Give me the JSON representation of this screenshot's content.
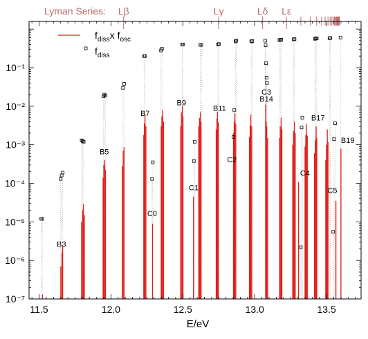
{
  "chart_data": {
    "type": "bar",
    "xlabel": "E/eV",
    "ylabel": "",
    "xlim": [
      11.43,
      13.74
    ],
    "ylim_log10": [
      -7,
      0.2
    ],
    "y_scale": "log",
    "x_ticks": [
      11.5,
      12.0,
      12.5,
      13.0,
      13.5
    ],
    "x_tick_labels": [
      "11.5",
      "12.0",
      "12.5",
      "13.0",
      "13.5"
    ],
    "y_ticks_exp": [
      -1,
      -2,
      -3,
      -4,
      -5,
      -6,
      -7
    ],
    "y_tick_labels": [
      "10⁻¹",
      "10⁻²",
      "10⁻³",
      "10⁻⁴",
      "10⁻⁵",
      "10⁻⁶",
      "10⁻⁷"
    ],
    "colors": {
      "bars": "#e0201b",
      "lyman": "#b86a6a",
      "markers": "#000000",
      "dotted": "#a9a9a9"
    },
    "lyman_series": {
      "title": "Lyman Series:",
      "lines": [
        {
          "label": "Lβ",
          "x": 12.088
        },
        {
          "label": "Lγ",
          "x": 12.749
        },
        {
          "label": "Lδ",
          "x": 13.055
        },
        {
          "label": "Lε",
          "x": 13.221
        }
      ],
      "converging_lines_x": [
        13.321,
        13.386,
        13.431,
        13.465,
        13.49,
        13.51,
        13.525,
        13.537,
        13.547,
        13.555,
        13.562,
        13.567,
        13.572,
        13.576,
        13.58,
        13.583,
        13.586,
        13.589
      ]
    },
    "legend": {
      "position": "top-left",
      "series1_main": "f",
      "series1_sub": "diss",
      "series1_mid": "x f",
      "series1_sub2": "osc",
      "series2_main": "f",
      "series2_sub": "diss"
    },
    "series": [
      {
        "name": "fdiss x fosc",
        "style": "bars",
        "x": [
          11.523,
          11.651,
          11.659,
          11.664,
          11.795,
          11.803,
          11.808,
          11.815,
          11.945,
          11.95,
          11.957,
          11.962,
          12.079,
          12.085,
          12.091,
          12.228,
          12.232,
          12.237,
          12.243,
          12.289,
          12.349,
          12.354,
          12.36,
          12.366,
          12.485,
          12.49,
          12.497,
          12.501,
          12.574,
          12.61,
          12.616,
          12.622,
          12.627,
          12.732,
          12.737,
          12.741,
          12.747,
          12.852,
          12.857,
          12.862,
          12.868,
          12.963,
          12.968,
          12.973,
          12.979,
          13.076,
          13.08,
          13.084,
          13.09,
          13.173,
          13.178,
          13.184,
          13.189,
          13.264,
          13.27,
          13.276,
          13.282,
          13.305,
          13.35,
          13.355,
          13.361,
          13.366,
          13.416,
          13.421,
          13.427,
          13.432,
          13.494,
          13.499,
          13.505,
          13.51,
          13.565,
          13.6
        ],
        "values": [
          1.3e-07,
          7e-07,
          1.6e-06,
          2.3e-06,
          1e-05,
          2e-05,
          2.9e-05,
          1.5e-05,
          0.00014,
          0.0003,
          0.0004,
          0.00022,
          0.00028,
          0.0007,
          0.00087,
          0.0018,
          0.0036,
          0.006,
          0.003,
          9e-06,
          0.003,
          0.0055,
          0.008,
          0.004,
          0.003,
          0.007,
          0.01,
          0.0055,
          4.5e-05,
          0.003,
          0.005,
          0.007,
          0.004,
          0.0025,
          0.0048,
          0.0072,
          0.0038,
          0.002,
          0.004,
          0.0065,
          0.0035,
          0.0016,
          0.0032,
          0.006,
          0.003,
          0.011,
          0.004,
          0.003,
          0.0015,
          0.0015,
          0.003,
          0.005,
          0.0025,
          0.001,
          0.0023,
          0.004,
          0.002,
          0.00011,
          0.0009,
          0.0018,
          0.0034,
          0.0017,
          0.0006,
          0.0013,
          0.003,
          0.0015,
          0.0004,
          0.001,
          0.0025,
          0.0012,
          3.5e-05,
          0.0008
        ]
      },
      {
        "name": "fdiss",
        "style": "open-squares",
        "x": [
          11.515,
          11.522,
          11.65,
          11.657,
          11.664,
          11.796,
          11.803,
          11.81,
          11.947,
          11.954,
          11.961,
          12.084,
          12.091,
          12.23,
          12.237,
          12.286,
          12.291,
          12.348,
          12.355,
          12.495,
          12.502,
          12.577,
          12.582,
          12.622,
          12.629,
          12.744,
          12.751,
          12.852,
          12.858,
          12.867,
          12.871,
          12.976,
          12.983,
          13.073,
          13.076,
          13.079,
          13.082,
          13.085,
          13.172,
          13.178,
          13.185,
          13.27,
          13.277,
          13.321,
          13.326,
          13.331,
          13.419,
          13.425,
          13.432,
          13.52,
          13.526,
          13.546,
          13.552,
          13.559,
          13.597
        ],
        "values": [
          1.2e-05,
          1.2e-05,
          0.00013,
          0.00016,
          0.00019,
          0.0013,
          0.00125,
          0.0012,
          0.018,
          0.02,
          0.019,
          0.03,
          0.038,
          0.2,
          0.2,
          0.00013,
          0.00035,
          0.28,
          0.31,
          0.4,
          0.4,
          0.00038,
          0.0012,
          0.39,
          0.39,
          0.4,
          0.41,
          0.0016,
          0.008,
          0.48,
          0.5,
          0.48,
          0.49,
          0.5,
          0.38,
          0.13,
          0.055,
          0.04,
          0.52,
          0.53,
          0.53,
          0.54,
          0.55,
          2.2e-06,
          0.0028,
          0.005,
          0.56,
          0.57,
          0.58,
          0.58,
          0.59,
          5.5e-06,
          0.0014,
          0.0036,
          0.6
        ]
      }
    ],
    "annotations": [
      {
        "text": "B3",
        "x": 11.655,
        "logy": -5.65
      },
      {
        "text": "B5",
        "x": 11.953,
        "logy": -3.25
      },
      {
        "text": "B7",
        "x": 12.237,
        "logy": -2.25
      },
      {
        "text": "B9",
        "x": 12.49,
        "logy": -1.98
      },
      {
        "text": "C0",
        "x": 12.286,
        "logy": -4.85
      },
      {
        "text": "C1",
        "x": 12.575,
        "logy": -4.18
      },
      {
        "text": "B11",
        "x": 12.755,
        "logy": -2.12
      },
      {
        "text": "C2",
        "x": 12.842,
        "logy": -3.45
      },
      {
        "text": "C3",
        "x": 13.081,
        "logy": -1.7
      },
      {
        "text": "B14",
        "x": 13.081,
        "logy": -1.88
      },
      {
        "text": "B17",
        "x": 13.44,
        "logy": -2.37
      },
      {
        "text": "C4",
        "x": 13.35,
        "logy": -3.8
      },
      {
        "text": "C5",
        "x": 13.54,
        "logy": -4.25
      },
      {
        "text": "B19",
        "x": 13.647,
        "logy": -2.95
      }
    ]
  }
}
